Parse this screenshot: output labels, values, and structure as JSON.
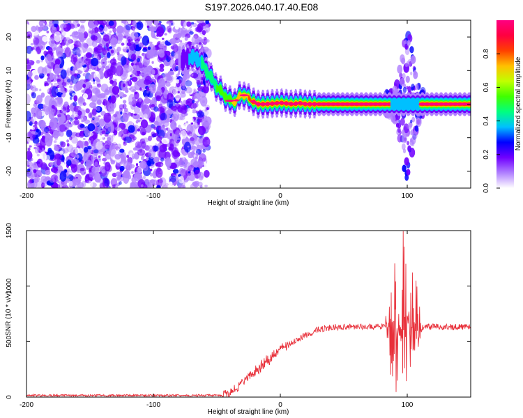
{
  "title": "S197.2026.040.17.40.E08",
  "chart_data": [
    {
      "type": "heatmap",
      "xlabel": "Height of straight line (km)",
      "ylabel": "Frequency (Hz)",
      "xlim": [
        -200,
        150
      ],
      "ylim": [
        -25,
        25
      ],
      "xticks": [
        -200,
        -100,
        0,
        100
      ],
      "yticks": [
        -20,
        -10,
        0,
        10,
        20
      ],
      "noise_region_km": [
        -200,
        -57
      ],
      "disturbance_region_km": [
        83,
        113
      ],
      "ridge": {
        "x_km": [
          -78,
          -70,
          -65,
          -60,
          -55,
          -50,
          -45,
          -40,
          -35,
          -32,
          -30,
          -26,
          -22,
          -18,
          -12,
          -5,
          0,
          5,
          10,
          15,
          20,
          25,
          30,
          40,
          50,
          60,
          70,
          80,
          85,
          90,
          95,
          105,
          110,
          120,
          130,
          140,
          150
        ],
        "freq_hz": [
          13,
          14,
          13.5,
          11,
          8,
          5,
          3,
          1,
          0.8,
          2.5,
          3,
          2,
          1,
          0,
          0,
          0.2,
          0.4,
          0.2,
          0,
          0.3,
          0,
          0,
          0,
          0,
          0,
          0,
          0,
          0,
          0,
          0,
          0,
          0,
          0,
          0,
          0,
          0,
          0
        ]
      },
      "colorbar": {
        "label": "Normalized spectral amplitude",
        "ticks": [
          "0.0",
          "0.2",
          "0.4",
          "0.6",
          "0.8"
        ],
        "range": [
          0,
          1
        ],
        "colors": [
          "#ffffff",
          "#b080ff",
          "#7000ff",
          "#0000ff",
          "#00c0ff",
          "#00ff80",
          "#40ff00",
          "#c0ff00",
          "#ffc000",
          "#ff4000",
          "#ff0040",
          "#ff0080"
        ]
      }
    },
    {
      "type": "line",
      "xlabel": "Height of straight line (km)",
      "ylabel": "SNR (10 * v/v)",
      "xlim": [
        -200,
        150
      ],
      "ylim": [
        0,
        1500
      ],
      "xticks": [
        -200,
        -100,
        0,
        100
      ],
      "yticks": [
        0,
        500,
        1000,
        1500
      ],
      "color": "#e8303a",
      "baseline": 15,
      "plateau": 630,
      "envelope": {
        "x_km": [
          -200,
          -45,
          -40,
          -30,
          -20,
          -10,
          0,
          10,
          20,
          30,
          40,
          60,
          80,
          150
        ],
        "snr": [
          15,
          15,
          40,
          120,
          230,
          330,
          420,
          500,
          560,
          610,
          630,
          635,
          635,
          630
        ]
      },
      "bursts": [
        {
          "x_km": 91,
          "peak": 1470
        },
        {
          "x_km": 98,
          "peak": 1540
        },
        {
          "x_km": 103,
          "peak": 1180
        },
        {
          "x_km": 88,
          "peak": 1100
        },
        {
          "x_km": 108,
          "peak": 1050
        }
      ],
      "disturbance_region_km": [
        83,
        112
      ],
      "min_dip": 40
    }
  ]
}
